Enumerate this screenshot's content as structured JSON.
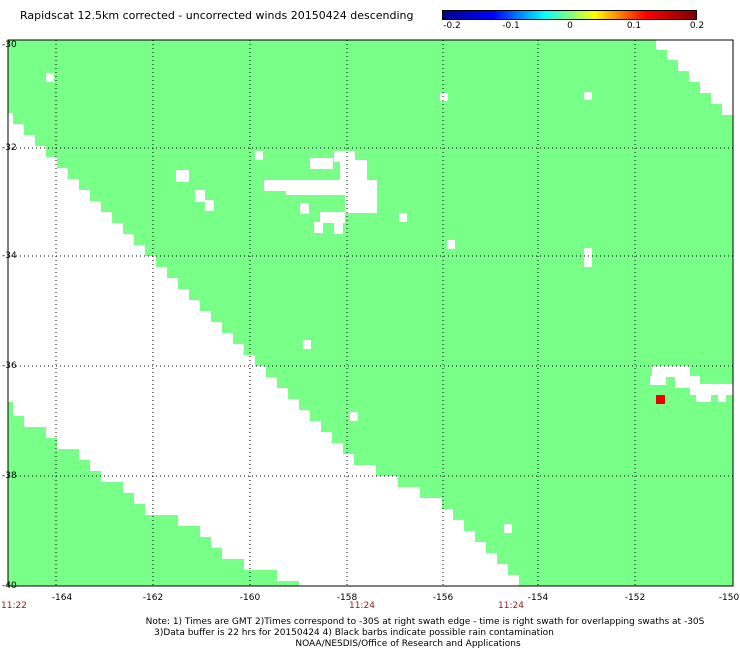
{
  "title": "Rapidscat 12.5km corrected - uncorrected winds 20150424 descending",
  "colorbar": {
    "ticks": [
      "-0.2",
      "-0.1",
      "0",
      "0.1",
      "0.2"
    ],
    "colors": [
      "#00008f",
      "#0000ff",
      "#00ffff",
      "#ffff00",
      "#ff0000",
      "#800000"
    ]
  },
  "colors": {
    "swath": "#77ff88",
    "background": "#ffffff",
    "grid": "#000000",
    "rain_flag": "#ee0000",
    "time": "#8b1a1a"
  },
  "axes": {
    "lat_labels": [
      "-30",
      "-32",
      "-34",
      "-36",
      "-38",
      "-40"
    ],
    "lon_labels": [
      "-164",
      "-162",
      "-160",
      "-158",
      "-156",
      "-154",
      "-152",
      "-150"
    ],
    "lat_range": [
      -40,
      -30
    ],
    "lon_range": [
      -165.2,
      -150
    ]
  },
  "time_labels": [
    "11:22",
    "11:24",
    "11:24"
  ],
  "notes": {
    "line1": "Note: 1) Times are GMT 2)Times correspond to -30S at right swath edge - time is right swath for overlapping swaths at -30S",
    "line2": "3)Data buffer is 22 hrs for 20150424 4) Black barbs indicate possible rain contamination",
    "line3": "NOAA/NESDIS/Office of Research and Applications"
  }
}
